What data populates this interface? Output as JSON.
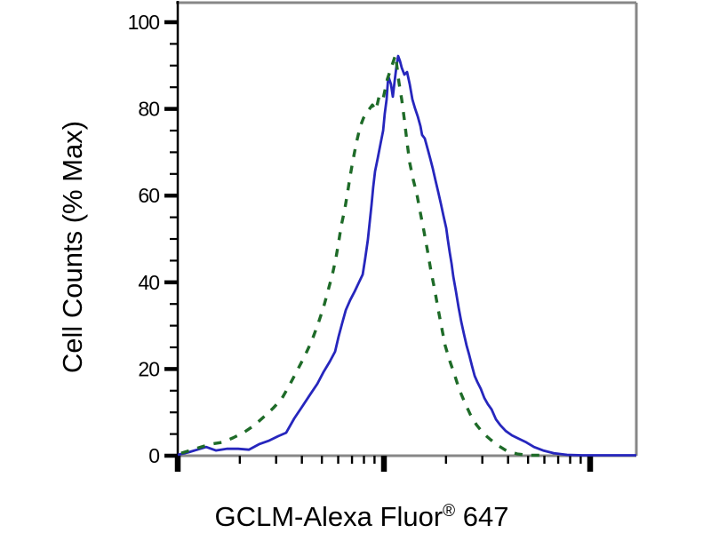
{
  "figure": {
    "background_color": "#ffffff",
    "frame_color": "#878787",
    "axis_color": "#000000"
  },
  "chart_data": {
    "type": "line",
    "subtype": "flow-cytometry-histogram-overlay",
    "title": "",
    "xlabel": "GCLM-Alexa Fluor® 647",
    "xlabel_parts": {
      "main": "GCLM-Alexa Fluor",
      "registered": "®",
      "suffix": " 647"
    },
    "ylabel": "Cell Counts (% Max)",
    "x_axis": {
      "scale": "log10",
      "visible_decades": 2.22,
      "major_ticks_at_decades": [
        0,
        1,
        2
      ],
      "minor_tick_pattern": "log positions 2-9 within each decade",
      "numeric_labels": "none"
    },
    "y_axis": {
      "min": 0,
      "max": 100,
      "major_ticks": [
        0,
        20,
        40,
        60,
        80,
        100
      ],
      "tick_labels": [
        "0",
        "20",
        "40",
        "60",
        "80",
        "100"
      ],
      "minor_tick_step": 5
    },
    "grid": "off",
    "legend": "none",
    "series": [
      {
        "name": "blue-solid-curve",
        "color": "#2626bd",
        "style": "solid",
        "points": [
          [
            0.0,
            0.2
          ],
          [
            0.052,
            0.8
          ],
          [
            0.095,
            1.4
          ],
          [
            0.138,
            2.0
          ],
          [
            0.185,
            1.2
          ],
          [
            0.237,
            1.6
          ],
          [
            0.293,
            1.6
          ],
          [
            0.345,
            1.4
          ],
          [
            0.397,
            2.7
          ],
          [
            0.444,
            3.5
          ],
          [
            0.487,
            4.5
          ],
          [
            0.526,
            5.3
          ],
          [
            0.565,
            8.6
          ],
          [
            0.603,
            11.3
          ],
          [
            0.642,
            14.1
          ],
          [
            0.677,
            16.6
          ],
          [
            0.707,
            19.3
          ],
          [
            0.737,
            21.7
          ],
          [
            0.763,
            24.0
          ],
          [
            0.78,
            27.5
          ],
          [
            0.797,
            30.5
          ],
          [
            0.815,
            33.6
          ],
          [
            0.836,
            35.9
          ],
          [
            0.858,
            37.9
          ],
          [
            0.879,
            40.0
          ],
          [
            0.897,
            41.8
          ],
          [
            0.909,
            45.5
          ],
          [
            0.922,
            49.8
          ],
          [
            0.931,
            53.9
          ],
          [
            0.94,
            58.0
          ],
          [
            0.948,
            61.9
          ],
          [
            0.957,
            65.6
          ],
          [
            0.97,
            68.6
          ],
          [
            0.983,
            71.9
          ],
          [
            0.996,
            75.0
          ],
          [
            1.004,
            78.9
          ],
          [
            1.013,
            82.2
          ],
          [
            1.021,
            87.5
          ],
          [
            1.034,
            85.7
          ],
          [
            1.043,
            82.8
          ],
          [
            1.052,
            86.5
          ],
          [
            1.06,
            89.5
          ],
          [
            1.069,
            92.2
          ],
          [
            1.078,
            91.0
          ],
          [
            1.086,
            89.5
          ],
          [
            1.099,
            87.9
          ],
          [
            1.112,
            88.5
          ],
          [
            1.125,
            85.7
          ],
          [
            1.138,
            82.2
          ],
          [
            1.151,
            80.1
          ],
          [
            1.164,
            78.3
          ],
          [
            1.177,
            76.0
          ],
          [
            1.185,
            74.0
          ],
          [
            1.198,
            73.2
          ],
          [
            1.211,
            70.9
          ],
          [
            1.224,
            68.6
          ],
          [
            1.237,
            66.2
          ],
          [
            1.25,
            63.5
          ],
          [
            1.263,
            60.9
          ],
          [
            1.276,
            58.2
          ],
          [
            1.289,
            55.3
          ],
          [
            1.302,
            52.5
          ],
          [
            1.31,
            49.8
          ],
          [
            1.319,
            46.9
          ],
          [
            1.328,
            44.3
          ],
          [
            1.336,
            41.4
          ],
          [
            1.349,
            37.9
          ],
          [
            1.362,
            34.2
          ],
          [
            1.375,
            30.9
          ],
          [
            1.388,
            28.1
          ],
          [
            1.401,
            25.4
          ],
          [
            1.414,
            23.2
          ],
          [
            1.427,
            20.7
          ],
          [
            1.44,
            18.4
          ],
          [
            1.453,
            17.0
          ],
          [
            1.47,
            15.4
          ],
          [
            1.487,
            13.3
          ],
          [
            1.504,
            11.9
          ],
          [
            1.522,
            10.7
          ],
          [
            1.543,
            8.4
          ],
          [
            1.565,
            7.0
          ],
          [
            1.591,
            5.7
          ],
          [
            1.621,
            4.7
          ],
          [
            1.655,
            3.9
          ],
          [
            1.69,
            3.1
          ],
          [
            1.728,
            2.0
          ],
          [
            1.772,
            1.2
          ],
          [
            1.823,
            0.6
          ],
          [
            1.888,
            0.2
          ],
          [
            1.961,
            0.1
          ],
          [
            2.069,
            0.1
          ],
          [
            2.224,
            0.1
          ]
        ]
      },
      {
        "name": "green-dashed-curve",
        "color": "#1e6b28",
        "style": "dashed",
        "points": [
          [
            0.017,
            0.6
          ],
          [
            0.06,
            1.2
          ],
          [
            0.112,
            2.0
          ],
          [
            0.164,
            2.7
          ],
          [
            0.216,
            3.1
          ],
          [
            0.267,
            4.1
          ],
          [
            0.319,
            5.3
          ],
          [
            0.371,
            7.0
          ],
          [
            0.418,
            9.0
          ],
          [
            0.461,
            10.9
          ],
          [
            0.504,
            13.1
          ],
          [
            0.543,
            16.4
          ],
          [
            0.582,
            19.9
          ],
          [
            0.616,
            23.0
          ],
          [
            0.651,
            26.6
          ],
          [
            0.681,
            30.5
          ],
          [
            0.707,
            34.2
          ],
          [
            0.728,
            37.9
          ],
          [
            0.75,
            41.8
          ],
          [
            0.767,
            45.5
          ],
          [
            0.78,
            49.2
          ],
          [
            0.793,
            53.1
          ],
          [
            0.81,
            56.8
          ],
          [
            0.823,
            60.5
          ],
          [
            0.836,
            64.5
          ],
          [
            0.849,
            68.0
          ],
          [
            0.866,
            72.1
          ],
          [
            0.884,
            75.8
          ],
          [
            0.901,
            77.9
          ],
          [
            0.922,
            79.5
          ],
          [
            0.944,
            80.9
          ],
          [
            0.961,
            79.7
          ],
          [
            0.978,
            83.2
          ],
          [
            0.996,
            82.4
          ],
          [
            1.017,
            86.9
          ],
          [
            1.039,
            90.0
          ],
          [
            1.056,
            92.4
          ],
          [
            1.073,
            86.1
          ],
          [
            1.086,
            82.2
          ],
          [
            1.099,
            77.5
          ],
          [
            1.112,
            72.3
          ],
          [
            1.125,
            67.6
          ],
          [
            1.142,
            63.7
          ],
          [
            1.159,
            60.5
          ],
          [
            1.177,
            55.9
          ],
          [
            1.194,
            51.8
          ],
          [
            1.211,
            47.3
          ],
          [
            1.228,
            42.6
          ],
          [
            1.246,
            38.3
          ],
          [
            1.263,
            33.8
          ],
          [
            1.28,
            29.5
          ],
          [
            1.297,
            25.4
          ],
          [
            1.319,
            21.9
          ],
          [
            1.341,
            18.9
          ],
          [
            1.366,
            15.2
          ],
          [
            1.392,
            12.3
          ],
          [
            1.418,
            9.6
          ],
          [
            1.448,
            7.2
          ],
          [
            1.483,
            5.1
          ],
          [
            1.517,
            3.7
          ],
          [
            1.556,
            2.3
          ],
          [
            1.599,
            1.0
          ],
          [
            1.647,
            0.4
          ],
          [
            1.698,
            0.1
          ],
          [
            1.759,
            0.1
          ]
        ]
      }
    ]
  }
}
